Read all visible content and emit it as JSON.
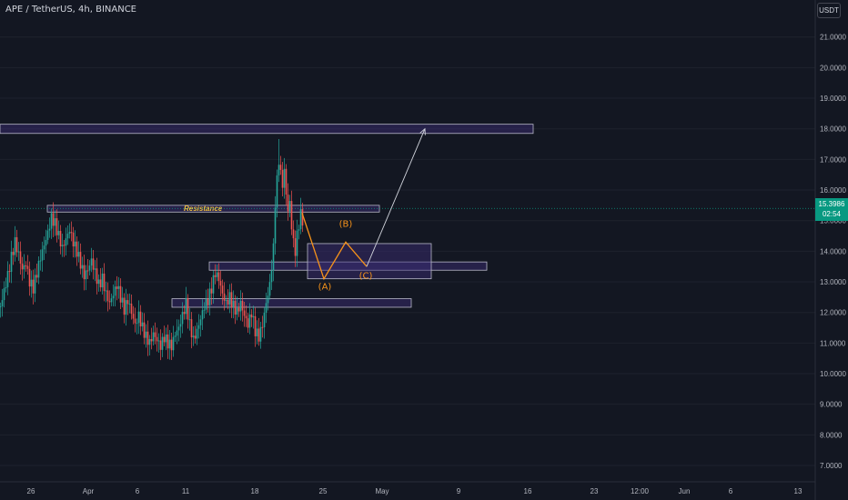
{
  "header": {
    "symbol_title": "APE / TetherUS, 4h, BINANCE",
    "currency_button": "USDT"
  },
  "last_price": {
    "value": "15.3986",
    "countdown": "02:54",
    "color": "#089981"
  },
  "colors": {
    "background": "#131722",
    "up": "#26a69a",
    "down": "#ef5350",
    "zone_fill": "#3d2f7a",
    "wave": "#f7931a",
    "axis_text": "#b2b5be"
  },
  "chart_data": {
    "type": "candlestick",
    "ylim": [
      6.6,
      21.6
    ],
    "y_ticks": [
      "21.0000",
      "20.0000",
      "19.0000",
      "18.0000",
      "17.0000",
      "16.0000",
      "15.0000",
      "14.0000",
      "13.0000",
      "12.0000",
      "11.0000",
      "10.0000",
      "9.0000",
      "8.0000",
      "7.0000"
    ],
    "x_ticks": [
      "26",
      "Apr",
      "6",
      "11",
      "18",
      "25",
      "May",
      "9",
      "16",
      "23",
      "12:00",
      "Jun",
      "6",
      "13"
    ],
    "close_path": [
      [
        0,
        12.2
      ],
      [
        4,
        12.7
      ],
      [
        8,
        13.2
      ],
      [
        12,
        13.8
      ],
      [
        16,
        14.3
      ],
      [
        20,
        13.9
      ],
      [
        24,
        13.4
      ],
      [
        28,
        13.6
      ],
      [
        32,
        13.0
      ],
      [
        36,
        12.8
      ],
      [
        40,
        13.3
      ],
      [
        44,
        13.8
      ],
      [
        48,
        14.2
      ],
      [
        52,
        14.6
      ],
      [
        56,
        15.1
      ],
      [
        60,
        14.9
      ],
      [
        64,
        14.5
      ],
      [
        68,
        14.1
      ],
      [
        72,
        14.4
      ],
      [
        76,
        14.7
      ],
      [
        80,
        14.3
      ],
      [
        84,
        14.0
      ],
      [
        88,
        13.6
      ],
      [
        92,
        13.2
      ],
      [
        96,
        13.4
      ],
      [
        100,
        13.7
      ],
      [
        104,
        13.3
      ],
      [
        108,
        12.9
      ],
      [
        112,
        13.1
      ],
      [
        116,
        12.6
      ],
      [
        120,
        12.3
      ],
      [
        124,
        12.6
      ],
      [
        128,
        12.9
      ],
      [
        132,
        12.5
      ],
      [
        136,
        12.1
      ],
      [
        140,
        12.4
      ],
      [
        144,
        12.0
      ],
      [
        148,
        11.6
      ],
      [
        152,
        11.9
      ],
      [
        156,
        11.5
      ],
      [
        160,
        11.2
      ],
      [
        164,
        11.0
      ],
      [
        168,
        11.3
      ],
      [
        172,
        11.1
      ],
      [
        176,
        10.9
      ],
      [
        180,
        11.2
      ],
      [
        184,
        11.0
      ],
      [
        188,
        10.9
      ],
      [
        192,
        11.3
      ],
      [
        196,
        11.5
      ],
      [
        200,
        11.9
      ],
      [
        204,
        12.3
      ],
      [
        208,
        11.6
      ],
      [
        212,
        11.1
      ],
      [
        216,
        11.4
      ],
      [
        220,
        11.8
      ],
      [
        224,
        12.2
      ],
      [
        228,
        12.4
      ],
      [
        232,
        12.8
      ],
      [
        236,
        13.3
      ],
      [
        240,
        13.1
      ],
      [
        244,
        12.6
      ],
      [
        248,
        12.3
      ],
      [
        252,
        12.5
      ],
      [
        256,
        12.2
      ],
      [
        260,
        12.0
      ],
      [
        264,
        12.3
      ],
      [
        268,
        11.9
      ],
      [
        272,
        11.6
      ],
      [
        276,
        12.0
      ],
      [
        280,
        11.4
      ],
      [
        284,
        11.2
      ],
      [
        288,
        11.6
      ],
      [
        292,
        12.3
      ],
      [
        296,
        12.9
      ],
      [
        300,
        14.1
      ],
      [
        302,
        15.6
      ],
      [
        304,
        16.3
      ],
      [
        306,
        17.0
      ],
      [
        308,
        16.5
      ],
      [
        310,
        16.2
      ],
      [
        312,
        16.6
      ],
      [
        314,
        15.9
      ],
      [
        316,
        15.3
      ],
      [
        318,
        15.6
      ],
      [
        320,
        14.8
      ],
      [
        322,
        14.3
      ],
      [
        324,
        14.0
      ],
      [
        326,
        14.5
      ],
      [
        328,
        14.9
      ],
      [
        330,
        15.2
      ],
      [
        332,
        15.0
      ]
    ],
    "annotations": {
      "zones": [
        {
          "label": "",
          "price_top": 18.15,
          "price_bottom": 17.85,
          "x_start": 0,
          "x_end": 586
        },
        {
          "label": "Resistance",
          "price_top": 15.5,
          "price_bottom": 15.28,
          "x_start": 52,
          "x_end": 417
        },
        {
          "label": "",
          "price_top": 13.65,
          "price_bottom": 13.38,
          "x_start": 230,
          "x_end": 535
        },
        {
          "label": "",
          "price_top": 12.45,
          "price_bottom": 12.17,
          "x_start": 189,
          "x_end": 452
        },
        {
          "label": "",
          "price_top": 14.25,
          "price_bottom": 13.1,
          "x_start": 338,
          "x_end": 474
        }
      ],
      "wave_points": [
        [
          332,
          15.25
        ],
        [
          356,
          13.1
        ],
        [
          380,
          14.3
        ],
        [
          403,
          13.5
        ]
      ],
      "wave_labels": [
        {
          "label": "(A)",
          "x": 357,
          "price": 12.75
        },
        {
          "label": "(B)",
          "x": 380,
          "price": 14.8
        },
        {
          "label": "(C)",
          "x": 402,
          "price": 13.1
        }
      ],
      "target_arrow": {
        "from": [
          403,
          13.5
        ],
        "to": [
          467,
          18.0
        ]
      }
    }
  }
}
